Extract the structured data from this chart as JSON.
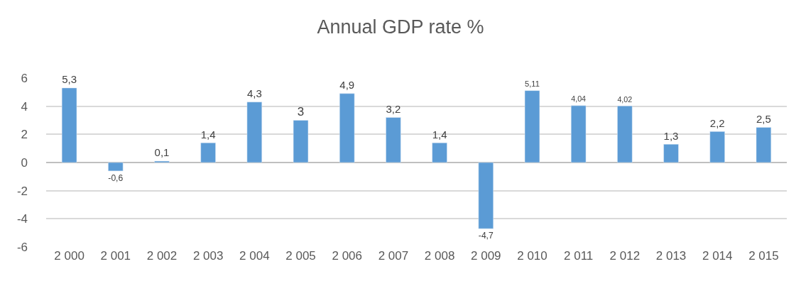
{
  "chart_data": {
    "type": "bar",
    "title": "Annual GDP rate %",
    "categories": [
      "2 000",
      "2 001",
      "2 002",
      "2 003",
      "2 004",
      "2 005",
      "2 006",
      "2 007",
      "2 008",
      "2 009",
      "2 010",
      "2 011",
      "2 012",
      "2 013",
      "2 014",
      "2 015"
    ],
    "values": [
      5.3,
      -0.6,
      0.1,
      1.4,
      4.3,
      3,
      4.9,
      3.2,
      1.4,
      -4.7,
      5.11,
      4.04,
      4.02,
      1.3,
      2.2,
      2.5
    ],
    "value_labels": [
      "5,3",
      "-0,6",
      "0,1",
      "1,4",
      "4,3",
      "3",
      "4,9",
      "3,2",
      "1,4",
      "-4,7",
      "5,11",
      "4,04",
      "4,02",
      "1,3",
      "2,2",
      "2,5"
    ],
    "color": "#5b9bd5",
    "ylim": [
      -6,
      6
    ],
    "yticks": [
      -6,
      -4,
      -2,
      0,
      2,
      4,
      6
    ],
    "grid": "y",
    "legend": false
  }
}
